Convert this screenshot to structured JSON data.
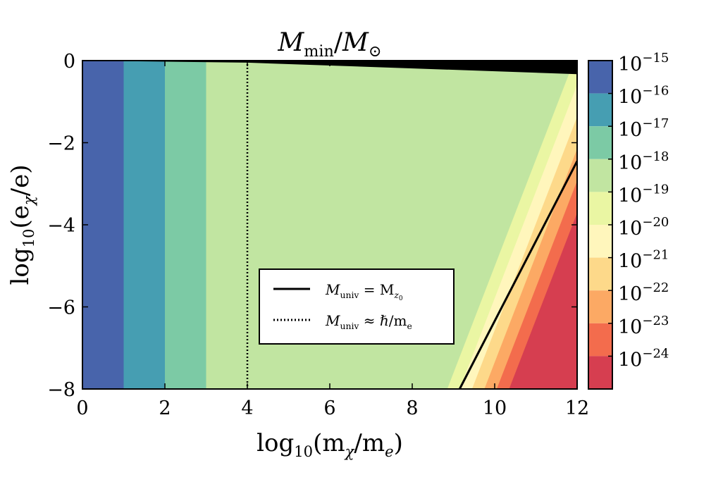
{
  "chart_data": {
    "type": "heatmap",
    "title": "M_min/M_⊙",
    "xlabel": "log10(m_χ/m_e)",
    "ylabel": "log10(e_χ/e)",
    "xlim": [
      0,
      12
    ],
    "ylim": [
      -8,
      0
    ],
    "x_ticks": [
      "0",
      "2",
      "4",
      "6",
      "8",
      "10",
      "12"
    ],
    "y_ticks": [
      "0",
      "−2",
      "−4",
      "−6",
      "−8"
    ],
    "colorbar": {
      "levels": [
        {
          "exp": "−15",
          "color": "#4864ab"
        },
        {
          "exp": "−16",
          "color": "#469eb2"
        },
        {
          "exp": "−17",
          "color": "#7ccaa5"
        },
        {
          "exp": "−18",
          "color": "#c1e5a1"
        },
        {
          "exp": "−19",
          "color": "#eaf6a3"
        },
        {
          "exp": "−20",
          "color": "#fff6bc"
        },
        {
          "exp": "−21",
          "color": "#fdd98a"
        },
        {
          "exp": "−22",
          "color": "#fca964"
        },
        {
          "exp": "−23",
          "color": "#f36c4d"
        },
        {
          "exp": "−24",
          "color": "#d63e50"
        }
      ]
    },
    "regions": [
      {
        "x": [
          0,
          1
        ],
        "level_exp": "−15"
      },
      {
        "x": [
          1,
          2
        ],
        "level_exp": "−16"
      },
      {
        "x": [
          2,
          3
        ],
        "level_exp": "−17"
      },
      {
        "x": [
          3,
          12
        ],
        "level_exp": "−18"
      }
    ],
    "diagonal_band": {
      "x_at_ymin_start": 8.85,
      "slope_y_per_x": 2.6,
      "band_width_x": 0.3,
      "count": 6
    },
    "excluded_region": {
      "color": "#000000",
      "x": [
        0,
        12
      ],
      "y_upper_edge": [
        [
          0,
          0.0
        ],
        [
          4,
          -0.05
        ],
        [
          12,
          -0.33
        ]
      ]
    },
    "lines": [
      {
        "label": "M_univ = M_z0",
        "style": "solid",
        "points": [
          [
            9.15,
            -8
          ],
          [
            12,
            -2.45
          ]
        ]
      },
      {
        "label": "M_univ ≈ ℏ/m_e",
        "style": "dotted",
        "points": [
          [
            4,
            0
          ],
          [
            4,
            -8
          ]
        ]
      }
    ],
    "legend": {
      "placement": "lower-center",
      "entries": [
        {
          "style": "solid",
          "label": "M_univ = M_z0"
        },
        {
          "style": "dotted",
          "label": "M_univ ≈ ℏ/m_e"
        }
      ]
    },
    "grid": false
  },
  "text": {
    "title_M": "M",
    "title_min": "min",
    "title_slash": "/",
    "title_Msun": "M",
    "title_sun": "⊙",
    "xlabel_log": "log",
    "xlabel_10": "10",
    "xlabel_rest": "(m",
    "xlabel_chi": "χ",
    "xlabel_slash": "/m",
    "xlabel_e": "e",
    "xlabel_close": ")",
    "ylabel_log": "log",
    "ylabel_10": "10",
    "ylabel_rest": "(e",
    "ylabel_chi": "χ",
    "ylabel_slash": "/e)",
    "legend_line1_M": "M",
    "legend_line1_univ": "univ",
    "legend_line1_eq": " = M",
    "legend_line1_z": "z",
    "legend_line1_0": "0",
    "legend_line2_M": "M",
    "legend_line2_univ": "univ",
    "legend_line2_rest": " ≈ ℏ/m",
    "legend_line2_e": "e",
    "cb_base": "10"
  }
}
